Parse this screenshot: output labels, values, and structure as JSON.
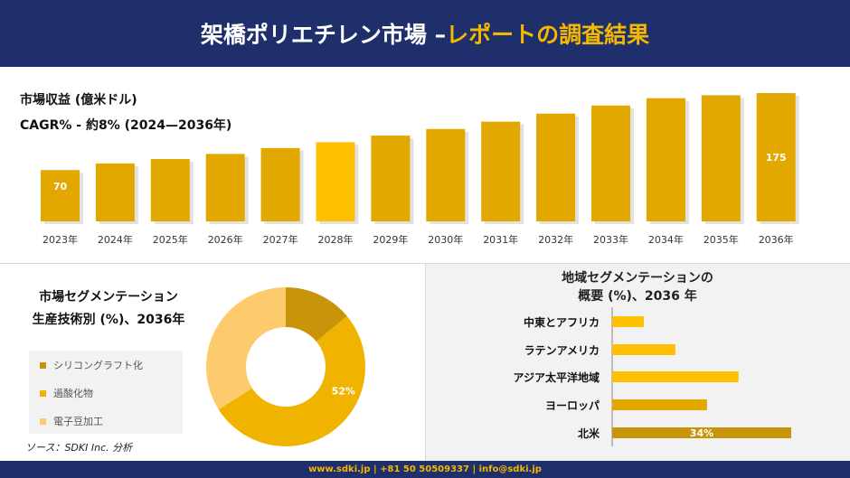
{
  "header": {
    "title_main": "架橋ポリエチレン市場 –",
    "title_accent": "レポートの調査結果"
  },
  "revenue": {
    "label": "市場収益 (億米ドル)",
    "cagr": "CAGR% - 約8% (2024—2036年)"
  },
  "chart_data": [
    {
      "type": "bar",
      "categories": [
        "2023年",
        "2024年",
        "2025年",
        "2026年",
        "2027年",
        "2028年",
        "2029年",
        "2030年",
        "2031年",
        "2032年",
        "2033年",
        "2034年",
        "2035年",
        "2036年"
      ],
      "values": [
        70,
        79,
        85,
        92,
        100,
        108,
        117,
        126,
        136,
        147,
        158,
        168,
        172,
        175
      ],
      "data_labels": {
        "0": "70",
        "13": "175"
      },
      "highlight_color": "#ffc000",
      "base_color": "#e2a800"
    },
    {
      "type": "pie",
      "title": "市場セグメンテーション 生産技術別 (%)、2036年",
      "labels": [
        "シリコングラフト化",
        "過酸化物",
        "電子豆加工"
      ],
      "values": [
        14,
        52,
        34
      ],
      "data_labels": [
        "",
        "52%",
        ""
      ],
      "colors": [
        "#c8940a",
        "#f0b400",
        "#fdcb6e"
      ]
    },
    {
      "type": "bar",
      "orientation": "horizontal",
      "title": "地域セグメンテーションの 概要 (%)、2036 年",
      "categories": [
        "中東とアフリカ",
        "ラテンアメリカ",
        "アジア太平洋地域",
        "ヨーロッパ",
        "北米"
      ],
      "values": [
        6,
        12,
        24,
        18,
        34
      ],
      "data_labels": [
        "",
        "",
        "",
        "",
        "34%"
      ],
      "colors": [
        "#ffc000",
        "#ffc000",
        "#ffc000",
        "#e2a800",
        "#c8940a"
      ]
    }
  ],
  "pie_title_lines": [
    "市場セグメンテーション",
    "生産技術別 (%)、2036年"
  ],
  "region_title_lines": [
    "地域セグメンテーションの",
    "概要 (%)、2036 年"
  ],
  "source": "ソース：SDKI Inc. 分析",
  "footer": "www.sdki.jp | +81 50 50509337 | info@sdki.jp"
}
